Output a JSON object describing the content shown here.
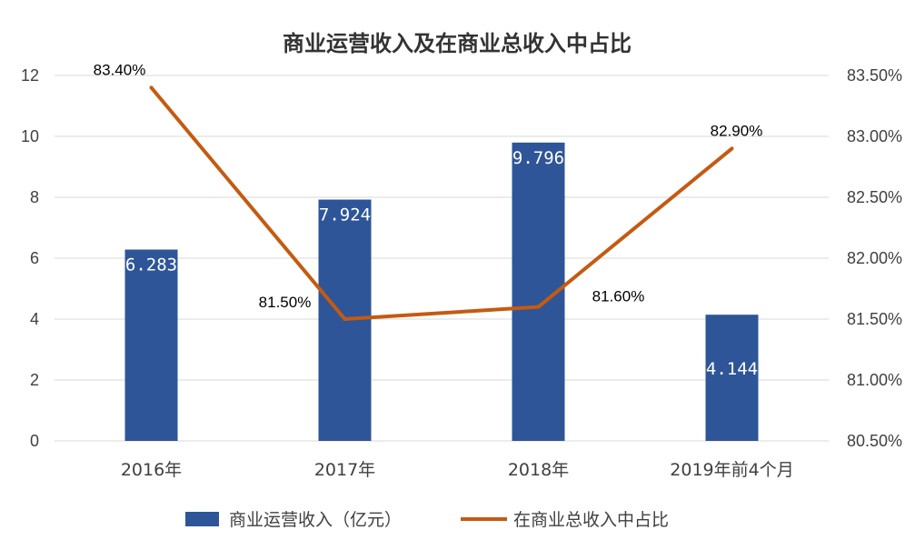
{
  "chart_data": {
    "type": "bar+line",
    "title": "商业运营收入及在商业总收入中占比",
    "categories": [
      "2016年",
      "2017年",
      "2018年",
      "2019年前4个月"
    ],
    "series": [
      {
        "name": "商业运营收入（亿元）",
        "type": "bar",
        "axis": "left",
        "values": [
          6.283,
          7.924,
          9.796,
          4.144
        ],
        "labels": [
          "6.283",
          "7.924",
          "9.796",
          "4.144"
        ],
        "color": "#2E5597"
      },
      {
        "name": "在商业总收入中占比",
        "type": "line",
        "axis": "right",
        "values": [
          83.4,
          81.5,
          81.6,
          82.9
        ],
        "labels": [
          "83.40%",
          "81.50%",
          "81.60%",
          "82.90%"
        ],
        "color": "#C55A11"
      }
    ],
    "left_axis": {
      "min": 0,
      "max": 12,
      "ticks": [
        "0",
        "2",
        "4",
        "6",
        "8",
        "10",
        "12"
      ]
    },
    "right_axis": {
      "min": 80.5,
      "max": 83.5,
      "ticks": [
        "80.50%",
        "81.00%",
        "81.50%",
        "82.00%",
        "82.50%",
        "83.00%",
        "83.50%"
      ]
    },
    "grid": true,
    "gridColor": "#D9D9D9",
    "legend_position": "bottom"
  }
}
